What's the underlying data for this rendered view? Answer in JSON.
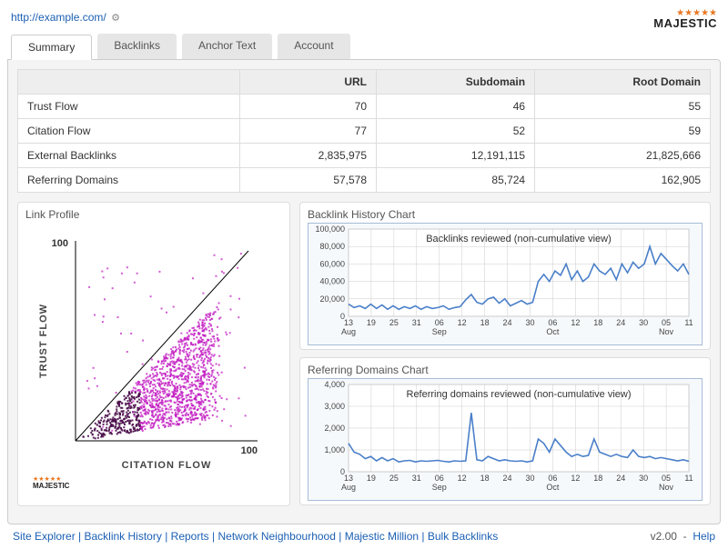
{
  "header": {
    "url": "http://example.com/",
    "logo_text": "MAJESTIC",
    "logo_stars": "★★★★★",
    "logo_star_color": "#e87722"
  },
  "tabs": [
    {
      "label": "Summary",
      "active": true
    },
    {
      "label": "Backlinks",
      "active": false
    },
    {
      "label": "Anchor Text",
      "active": false
    },
    {
      "label": "Account",
      "active": false
    }
  ],
  "metrics_table": {
    "columns": [
      "",
      "URL",
      "Subdomain",
      "Root Domain"
    ],
    "rows": [
      {
        "label": "Trust Flow",
        "values": [
          "70",
          "46",
          "55"
        ]
      },
      {
        "label": "Citation Flow",
        "values": [
          "77",
          "52",
          "59"
        ]
      },
      {
        "label": "External Backlinks",
        "values": [
          "2,835,975",
          "12,191,115",
          "21,825,666"
        ]
      },
      {
        "label": "Referring Domains",
        "values": [
          "57,578",
          "85,724",
          "162,905"
        ]
      }
    ]
  },
  "link_profile": {
    "title": "Link Profile",
    "xlabel": "CITATION FLOW",
    "ylabel": "TRUST FLOW",
    "axis_max": 100,
    "axis_min": 0,
    "tick_label": "100",
    "dot_color": "#c016c0",
    "dot_color_dark": "#4a0e4a",
    "line_color": "#000000",
    "logo_text": "MAJESTIC"
  },
  "backlink_chart": {
    "title": "Backlink History Chart",
    "inner_label": "Backlinks reviewed (non-cumulative view)",
    "line_color": "#4a7fc9",
    "grid_color": "#cccccc",
    "bg_color": "#f6f9fc",
    "y_ticks": [
      "0",
      "20,000",
      "40,000",
      "60,000",
      "80,000",
      "100,000"
    ],
    "y_max": 100000,
    "x_ticks": [
      "13",
      "19",
      "25",
      "31",
      "06",
      "12",
      "18",
      "24",
      "30",
      "06",
      "12",
      "18",
      "24",
      "30",
      "05",
      "11"
    ],
    "x_months": [
      "Aug",
      "",
      "",
      "",
      "Sep",
      "",
      "",
      "",
      "",
      "Oct",
      "",
      "",
      "",
      "",
      "Nov",
      ""
    ],
    "values": [
      14000,
      10000,
      12000,
      9000,
      14000,
      9000,
      13000,
      8000,
      12000,
      8000,
      11000,
      9000,
      12000,
      8000,
      11000,
      9000,
      10000,
      12000,
      8000,
      10000,
      11000,
      19000,
      25000,
      16000,
      14000,
      20000,
      22000,
      15000,
      20000,
      12000,
      15000,
      18000,
      14000,
      16000,
      40000,
      48000,
      40000,
      52000,
      47000,
      60000,
      42000,
      52000,
      40000,
      45000,
      60000,
      52000,
      48000,
      55000,
      42000,
      60000,
      50000,
      62000,
      55000,
      60000,
      80000,
      60000,
      72000,
      65000,
      58000,
      52000,
      60000,
      48000
    ]
  },
  "refdom_chart": {
    "title": "Referring Domains Chart",
    "inner_label": "Referring domains reviewed (non-cumulative view)",
    "line_color": "#4a7fc9",
    "grid_color": "#cccccc",
    "bg_color": "#f6f9fc",
    "y_ticks": [
      "0",
      "1,000",
      "2,000",
      "3,000",
      "4,000"
    ],
    "y_max": 4000,
    "x_ticks": [
      "13",
      "19",
      "25",
      "31",
      "06",
      "12",
      "18",
      "24",
      "30",
      "06",
      "12",
      "18",
      "24",
      "30",
      "05",
      "11"
    ],
    "x_months": [
      "Aug",
      "",
      "",
      "",
      "Sep",
      "",
      "",
      "",
      "",
      "Oct",
      "",
      "",
      "",
      "",
      "Nov",
      ""
    ],
    "values": [
      1300,
      900,
      800,
      600,
      700,
      500,
      650,
      500,
      600,
      450,
      500,
      520,
      450,
      500,
      480,
      500,
      520,
      480,
      450,
      500,
      480,
      500,
      2700,
      550,
      500,
      700,
      600,
      500,
      550,
      500,
      480,
      500,
      450,
      500,
      1500,
      1300,
      900,
      1500,
      1200,
      900,
      700,
      800,
      700,
      750,
      1500,
      900,
      800,
      700,
      800,
      700,
      650,
      1000,
      700,
      650,
      700,
      600,
      650,
      600,
      550,
      500,
      550,
      480
    ]
  },
  "footer": {
    "links": [
      "Site Explorer",
      "Backlink History",
      "Reports",
      "Network Neighbourhood",
      "Majestic Million",
      "Bulk Backlinks"
    ],
    "version": "v2.00",
    "help": "Help"
  }
}
